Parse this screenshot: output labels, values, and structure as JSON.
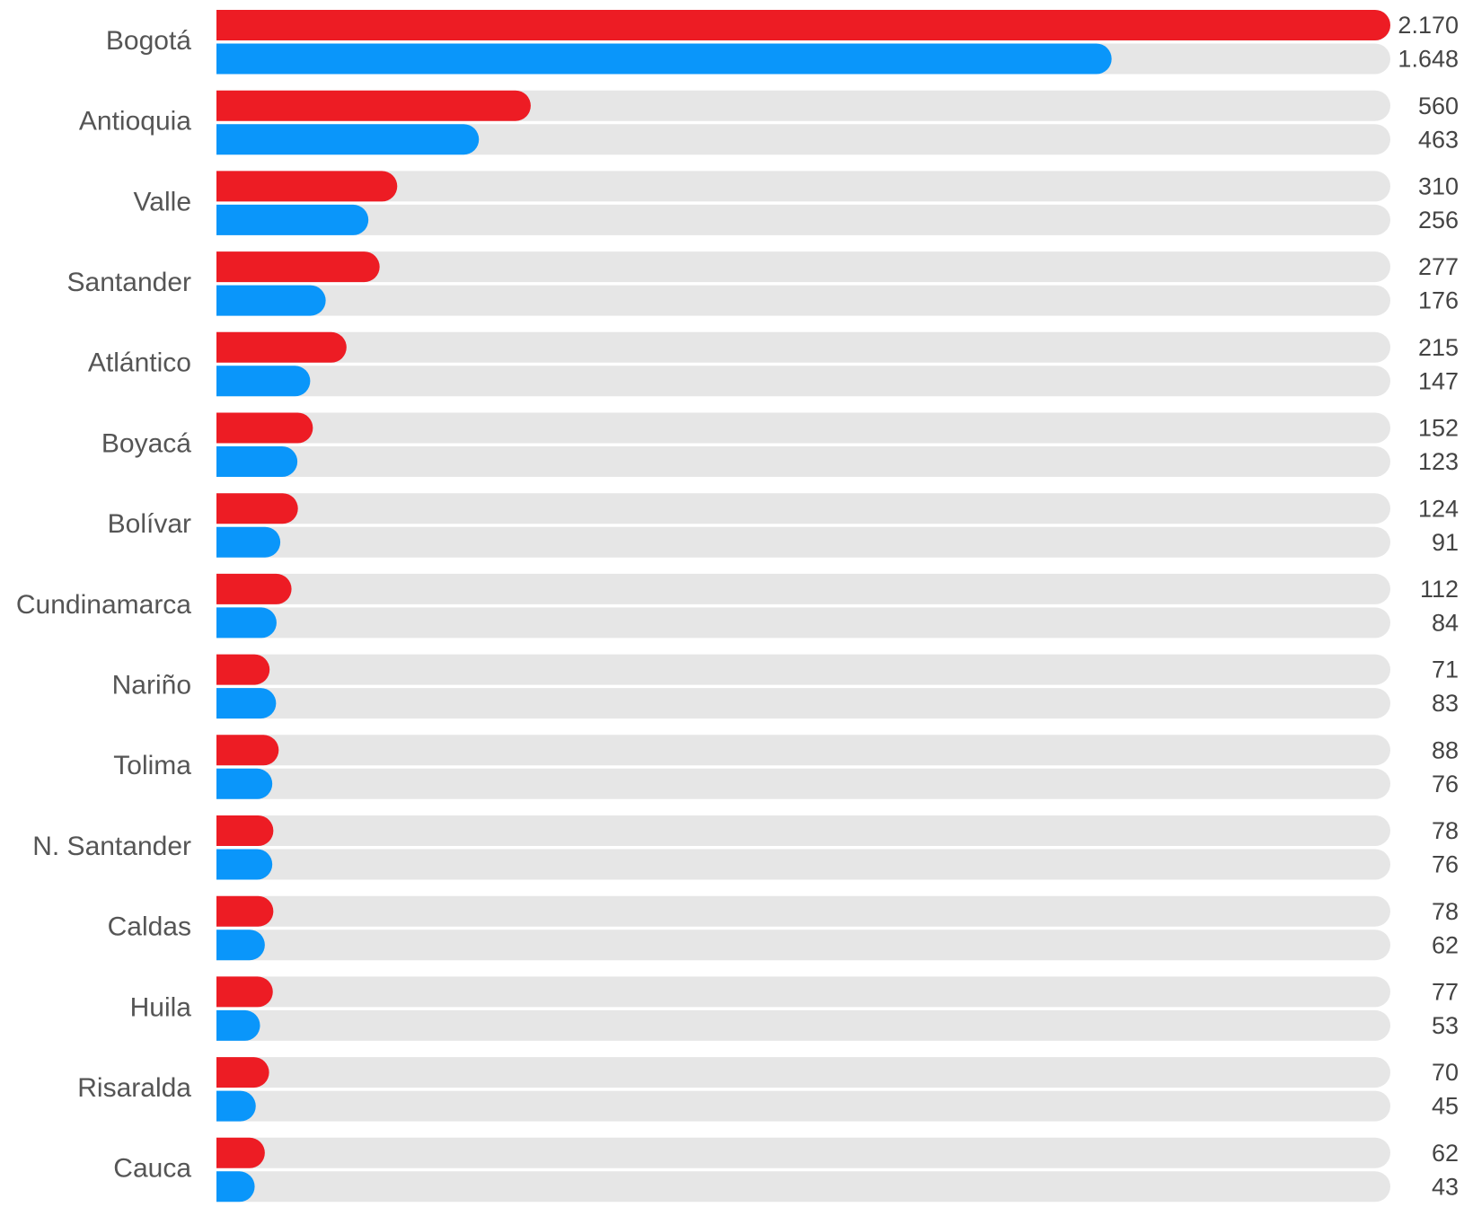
{
  "chart_data": {
    "type": "bar",
    "orientation": "horizontal",
    "categories": [
      "Bogotá",
      "Antioquia",
      "Valle",
      "Santander",
      "Atlántico",
      "Boyacá",
      "Bolívar",
      "Cundinamarca",
      "Nariño",
      "Tolima",
      "N. Santander",
      "Caldas",
      "Huila",
      "Risaralda",
      "Cauca"
    ],
    "series": [
      {
        "color": "#ed1c24",
        "values": [
          2170,
          560,
          310,
          277,
          215,
          152,
          124,
          112,
          71,
          88,
          78,
          78,
          77,
          70,
          62
        ],
        "value_labels": [
          "2.170",
          "560",
          "310",
          "277",
          "215",
          "152",
          "124",
          "112",
          "71",
          "88",
          "78",
          "78",
          "77",
          "70",
          "62"
        ]
      },
      {
        "color": "#0a96fa",
        "values": [
          1648,
          463,
          256,
          176,
          147,
          123,
          91,
          84,
          83,
          76,
          76,
          62,
          53,
          45,
          43
        ],
        "value_labels": [
          "1.648",
          "463",
          "256",
          "176",
          "147",
          "123",
          "91",
          "84",
          "83",
          "76",
          "76",
          "62",
          "53",
          "45",
          "43"
        ]
      }
    ],
    "xlim": [
      0,
      2170
    ],
    "track_color": "#e6e6e6",
    "grid": false,
    "legend": "none"
  }
}
